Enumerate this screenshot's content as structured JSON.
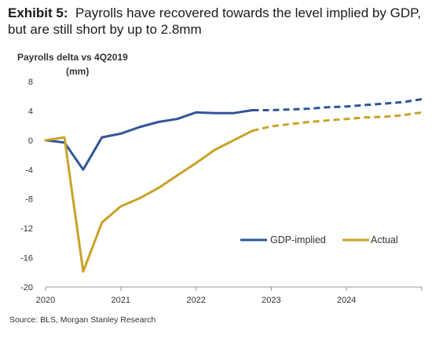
{
  "title": {
    "prefix": "Exhibit 5:",
    "line1": "Payrolls have recovered towards the level implied by GDP,",
    "line2": "but are still short by up to 2.8mm"
  },
  "source": "Source: BLS, Morgan Stanley Research",
  "chart_data": {
    "type": "line",
    "title": "Exhibit 5: Payrolls have recovered towards the level implied by GDP, but are still short by up to 2.8mm",
    "ylabel": "Payrolls delta vs 4Q2019",
    "yunit": "(mm)",
    "xlabel": "",
    "ylim": [
      -20,
      8
    ],
    "yticks": [
      -20,
      -16,
      -12,
      -8,
      -4,
      0,
      4,
      8
    ],
    "xlim": [
      2020.0,
      2025.0
    ],
    "xticks": [
      2020,
      2021,
      2022,
      2023,
      2024
    ],
    "grid": false,
    "legend_position": "lower-right",
    "projection_start": 2022.75,
    "series": [
      {
        "name": "GDP-implied",
        "color": "#2f5597",
        "x": [
          2020.0,
          2020.25,
          2020.5,
          2020.75,
          2021.0,
          2021.25,
          2021.5,
          2021.75,
          2022.0,
          2022.25,
          2022.5,
          2022.75,
          2023.0,
          2023.25,
          2023.5,
          2023.75,
          2024.0,
          2024.25,
          2024.5,
          2024.75,
          2025.0
        ],
        "values": [
          0,
          -0.3,
          -4.0,
          0.4,
          0.9,
          1.8,
          2.5,
          2.9,
          3.8,
          3.7,
          3.7,
          4.1,
          4.1,
          4.2,
          4.3,
          4.5,
          4.6,
          4.8,
          5.0,
          5.2,
          5.6
        ]
      },
      {
        "name": "Actual",
        "color": "#c9a227",
        "x": [
          2020.0,
          2020.25,
          2020.5,
          2020.75,
          2021.0,
          2021.25,
          2021.5,
          2021.75,
          2022.0,
          2022.25,
          2022.5,
          2022.75,
          2023.0,
          2023.25,
          2023.5,
          2023.75,
          2024.0,
          2024.25,
          2024.5,
          2024.75,
          2025.0
        ],
        "values": [
          0,
          0.4,
          -17.9,
          -11.2,
          -9.0,
          -7.9,
          -6.5,
          -4.8,
          -3.1,
          -1.3,
          0.0,
          1.3,
          1.9,
          2.2,
          2.5,
          2.7,
          2.9,
          3.1,
          3.2,
          3.4,
          3.8
        ]
      }
    ]
  }
}
